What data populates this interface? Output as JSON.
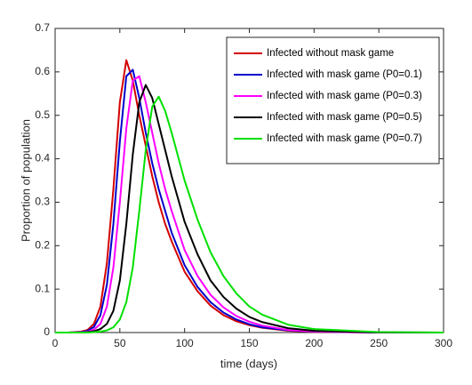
{
  "chart_data": {
    "type": "line",
    "x_label": "time (days)",
    "y_label": "Proportion of population",
    "x": [
      0,
      10,
      20,
      25,
      30,
      35,
      40,
      45,
      50,
      55,
      60,
      65,
      70,
      75,
      80,
      85,
      90,
      100,
      110,
      120,
      130,
      140,
      150,
      160,
      180,
      200,
      250,
      300
    ],
    "series": [
      {
        "name": "Infected without mask game",
        "color": "#d40000",
        "values": [
          0,
          0,
          0.002,
          0.006,
          0.02,
          0.06,
          0.16,
          0.33,
          0.53,
          0.627,
          0.58,
          0.5,
          0.43,
          0.36,
          0.3,
          0.25,
          0.21,
          0.14,
          0.095,
          0.062,
          0.04,
          0.026,
          0.017,
          0.011,
          0.004,
          0.0015,
          0,
          0
        ]
      },
      {
        "name": "Infected with mask game (P0=0.1)",
        "color": "#0000cc",
        "values": [
          0,
          0,
          0.001,
          0.004,
          0.013,
          0.04,
          0.11,
          0.25,
          0.44,
          0.59,
          0.605,
          0.54,
          0.46,
          0.39,
          0.33,
          0.28,
          0.23,
          0.155,
          0.105,
          0.07,
          0.046,
          0.03,
          0.019,
          0.012,
          0.005,
          0.002,
          0,
          0
        ]
      },
      {
        "name": "Infected with mask game (P0=0.3)",
        "color": "#ff00ff",
        "values": [
          0,
          0,
          0.0005,
          0.002,
          0.007,
          0.02,
          0.06,
          0.15,
          0.3,
          0.47,
          0.58,
          0.59,
          0.53,
          0.46,
          0.39,
          0.33,
          0.28,
          0.19,
          0.13,
          0.087,
          0.058,
          0.038,
          0.025,
          0.016,
          0.006,
          0.0025,
          0.0002,
          0
        ]
      },
      {
        "name": "Infected with mask game (P0=0.5)",
        "color": "#000000",
        "values": [
          0,
          0,
          0,
          0.001,
          0.003,
          0.008,
          0.02,
          0.05,
          0.12,
          0.25,
          0.41,
          0.53,
          0.57,
          0.54,
          0.48,
          0.42,
          0.36,
          0.255,
          0.18,
          0.12,
          0.082,
          0.055,
          0.036,
          0.024,
          0.01,
          0.004,
          0.0004,
          0
        ]
      },
      {
        "name": "Infected with mask game (P0=0.7)",
        "color": "#00e000",
        "values": [
          0,
          0,
          0,
          0,
          0.001,
          0.002,
          0.005,
          0.012,
          0.03,
          0.07,
          0.15,
          0.28,
          0.42,
          0.52,
          0.543,
          0.51,
          0.46,
          0.35,
          0.26,
          0.185,
          0.13,
          0.09,
          0.06,
          0.041,
          0.018,
          0.008,
          0.001,
          0
        ]
      }
    ],
    "xlim": [
      0,
      300
    ],
    "xticks": [
      0,
      50,
      100,
      150,
      200,
      250,
      300
    ],
    "ylim": [
      0,
      0.7
    ],
    "yticks": [
      0,
      0.1,
      0.2,
      0.3,
      0.4,
      0.5,
      0.6,
      0.7
    ],
    "legend_position": "northeast"
  }
}
